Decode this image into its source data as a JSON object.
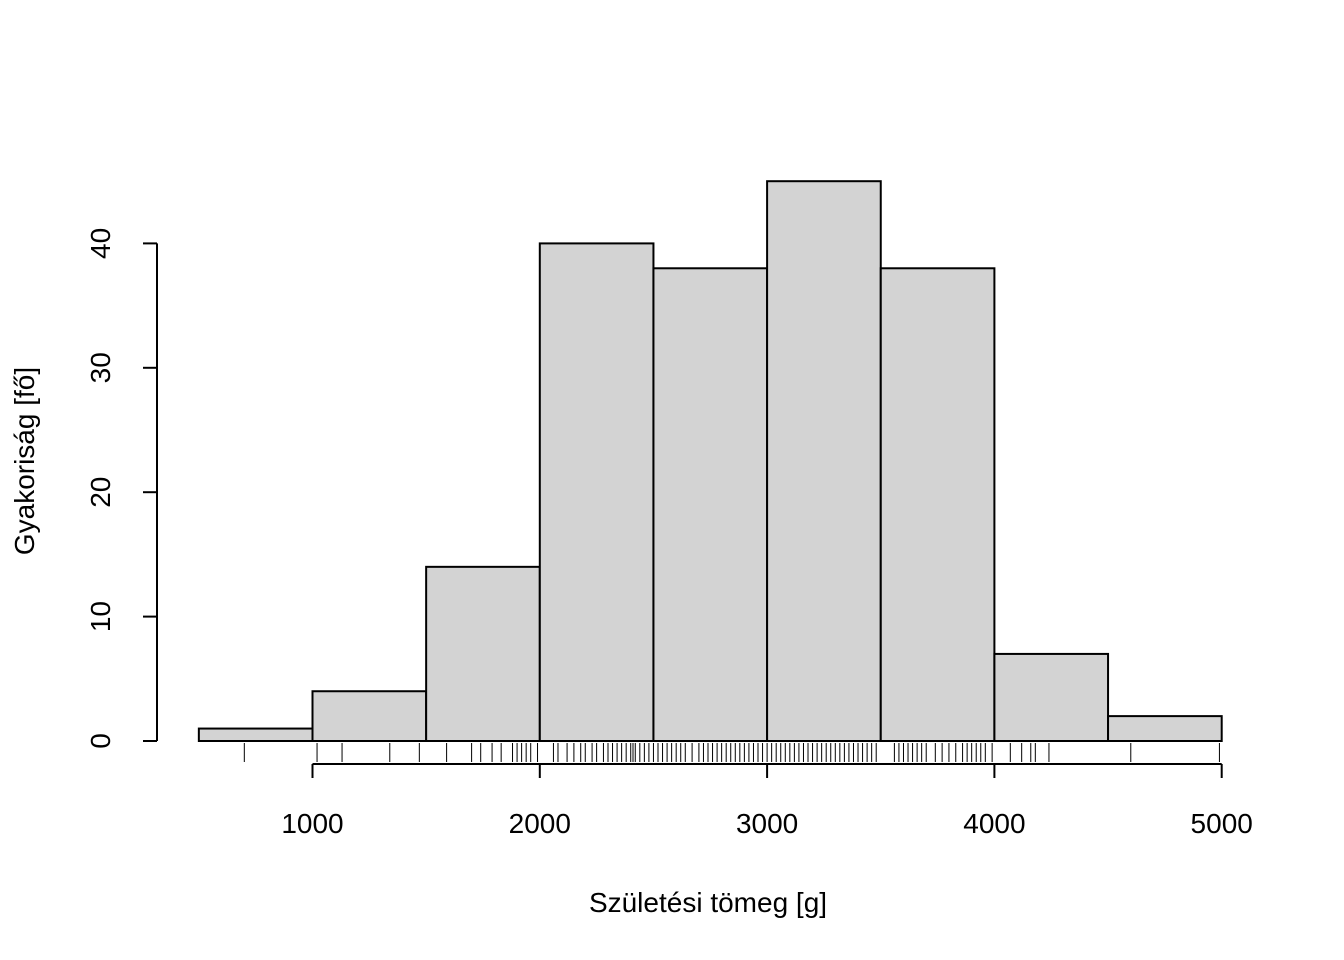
{
  "chart_data": {
    "type": "bar",
    "subtype": "histogram",
    "title": "",
    "xlabel": "Születési tömeg [g]",
    "ylabel": "Gyakoriság [fő]",
    "bins": [
      {
        "from": 500,
        "to": 1000,
        "count": 1
      },
      {
        "from": 1000,
        "to": 1500,
        "count": 4
      },
      {
        "from": 1500,
        "to": 2000,
        "count": 14
      },
      {
        "from": 2000,
        "to": 2500,
        "count": 40
      },
      {
        "from": 2500,
        "to": 3000,
        "count": 38
      },
      {
        "from": 3000,
        "to": 3500,
        "count": 45
      },
      {
        "from": 3500,
        "to": 4000,
        "count": 38
      },
      {
        "from": 4000,
        "to": 4500,
        "count": 7
      },
      {
        "from": 4500,
        "to": 5000,
        "count": 2
      }
    ],
    "x_ticks": [
      1000,
      2000,
      3000,
      4000,
      5000
    ],
    "y_ticks": [
      0,
      10,
      20,
      30,
      40
    ],
    "xlim": [
      500,
      5000
    ],
    "ylim": [
      0,
      45
    ],
    "bar_color": "#d3d3d3",
    "rug": [
      700,
      1020,
      1130,
      1340,
      1470,
      1590,
      1700,
      1740,
      1790,
      1830,
      1880,
      1900,
      1920,
      1940,
      1960,
      1990,
      2060,
      2080,
      2120,
      2150,
      2180,
      2200,
      2230,
      2250,
      2280,
      2300,
      2320,
      2340,
      2360,
      2380,
      2400,
      2410,
      2420,
      2440,
      2460,
      2480,
      2500,
      2520,
      2540,
      2560,
      2580,
      2600,
      2620,
      2640,
      2670,
      2700,
      2720,
      2740,
      2760,
      2780,
      2800,
      2820,
      2840,
      2860,
      2880,
      2900,
      2920,
      2940,
      2960,
      2980,
      3000,
      3020,
      3040,
      3060,
      3080,
      3100,
      3120,
      3140,
      3160,
      3180,
      3200,
      3220,
      3240,
      3260,
      3280,
      3300,
      3320,
      3340,
      3360,
      3380,
      3400,
      3420,
      3440,
      3460,
      3480,
      3560,
      3580,
      3600,
      3620,
      3640,
      3660,
      3680,
      3700,
      3740,
      3770,
      3800,
      3830,
      3860,
      3880,
      3900,
      3920,
      3940,
      3960,
      3990,
      4070,
      4120,
      4160,
      4180,
      4240,
      4600,
      4990
    ]
  }
}
